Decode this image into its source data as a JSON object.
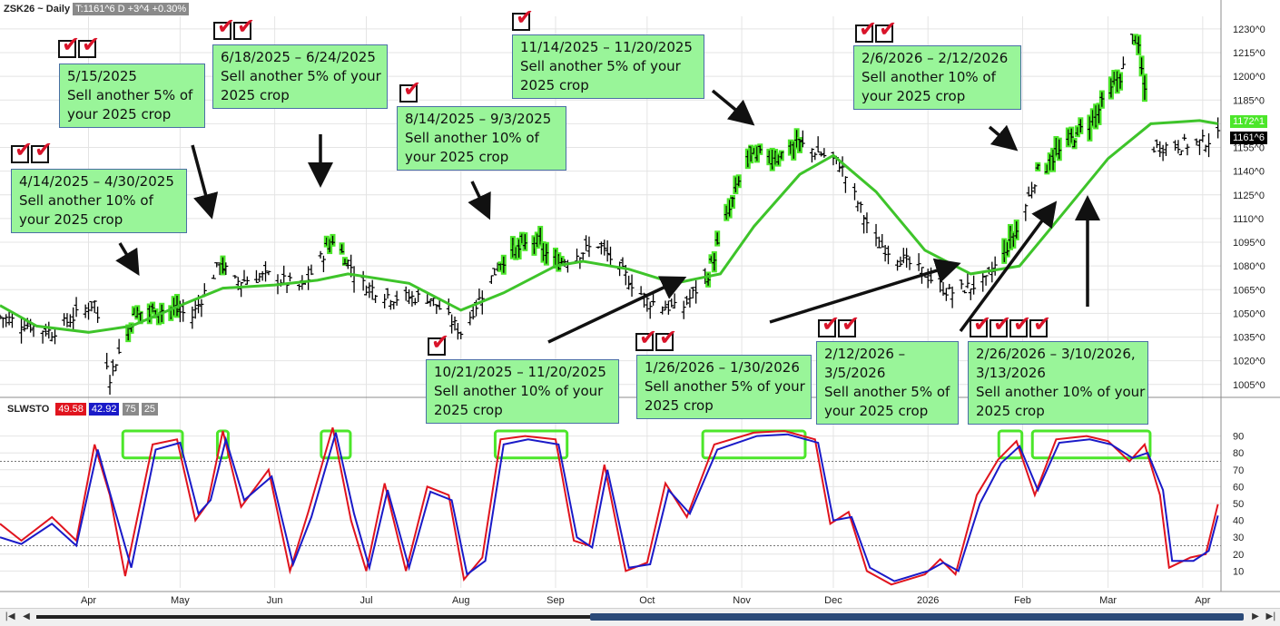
{
  "header": {
    "symbol": "ZSK26 ~ Daily",
    "quote": "T:1161^6 D  +3^4  +0.30%"
  },
  "indicator_header": {
    "name": "SLWSTO",
    "values": [
      {
        "text": "49.58",
        "color": "#e0141e"
      },
      {
        "text": "42.92",
        "color": "#1a1ac8"
      },
      {
        "text": "75",
        "color": "#8a8a8a"
      },
      {
        "text": "25",
        "color": "#8a8a8a"
      }
    ]
  },
  "price_labels": {
    "ma_value": "1172^1",
    "last_value": "1161^6"
  },
  "annotations": [
    {
      "lines": [
        "4/14/2025 – 4/30/2025",
        "Sell another 10% of",
        "your 2025 crop"
      ],
      "checks": 2
    },
    {
      "lines": [
        "5/15/2025",
        "Sell another 5% of",
        "your 2025 crop"
      ],
      "checks": 2
    },
    {
      "lines": [
        "6/18/2025 – 6/24/2025",
        "Sell another 5% of your",
        "2025 crop"
      ],
      "checks": 2
    },
    {
      "lines": [
        "8/14/2025 – 9/3/2025",
        "Sell another 10% of",
        "your 2025 crop"
      ],
      "checks": 1
    },
    {
      "lines": [
        "10/21/2025 – 11/20/2025",
        "Sell another 10% of your",
        "2025 crop"
      ],
      "checks": 1
    },
    {
      "lines": [
        "11/14/2025 – 11/20/2025",
        "Sell another 5% of your",
        "2025 crop"
      ],
      "checks": 1
    },
    {
      "lines": [
        "1/26/2026 – 1/30/2026",
        "Sell another 5% of your",
        "2025 crop"
      ],
      "checks": 2
    },
    {
      "lines": [
        "2/6/2026 – 2/12/2026",
        "Sell another 10% of",
        "your 2025 crop"
      ],
      "checks": 2
    },
    {
      "lines": [
        "2/12/2026 –",
        "3/5/2026",
        "Sell another 5% of",
        "your 2025 crop"
      ],
      "checks": 2
    },
    {
      "lines": [
        "2/26/2026 – 3/10/2026,",
        "3/13/2026",
        "Sell another 10% of your",
        "2025 crop"
      ],
      "checks": 4
    }
  ],
  "chart_data": [
    {
      "type": "ohlc",
      "title": "ZSK26 ~ Daily",
      "y_axis_side": "right",
      "y_ticks": [
        "1230^0",
        "1215^0",
        "1200^0",
        "1185^0",
        "1170^0",
        "1155^0",
        "1140^0",
        "1125^0",
        "1110^0",
        "1095^0",
        "1080^0",
        "1065^0",
        "1050^0",
        "1035^0",
        "1020^0",
        "1005^0"
      ],
      "ylim": [
        998,
        1238
      ],
      "x_labels": [
        "Apr",
        "May",
        "Jun",
        "Jul",
        "Aug",
        "Sep",
        "Oct",
        "Nov",
        "Dec",
        "2026",
        "Feb",
        "Mar",
        "Apr"
      ],
      "x_label_dates": [
        "2025-04-01",
        "2025-05-01",
        "2025-06-01",
        "2025-07-01",
        "2025-08-01",
        "2025-09-01",
        "2025-10-01",
        "2025-11-01",
        "2025-12-01",
        "2026-01-01",
        "2026-02-01",
        "2026-03-01",
        "2026-04-01"
      ],
      "close_points": [
        [
          "2025-03-03",
          1048
        ],
        [
          "2025-03-20",
          1038
        ],
        [
          "2025-04-03",
          1057
        ],
        [
          "2025-04-08",
          1010
        ],
        [
          "2025-04-16",
          1050
        ],
        [
          "2025-04-28",
          1053
        ],
        [
          "2025-05-05",
          1048
        ],
        [
          "2025-05-14",
          1082
        ],
        [
          "2025-05-19",
          1070
        ],
        [
          "2025-05-30",
          1074
        ],
        [
          "2025-06-10",
          1066
        ],
        [
          "2025-06-20",
          1097
        ],
        [
          "2025-06-30",
          1068
        ],
        [
          "2025-07-10",
          1060
        ],
        [
          "2025-07-22",
          1060
        ],
        [
          "2025-08-01",
          1038
        ],
        [
          "2025-08-14",
          1083
        ],
        [
          "2025-08-25",
          1097
        ],
        [
          "2025-09-01",
          1081
        ],
        [
          "2025-09-15",
          1094
        ],
        [
          "2025-10-01",
          1058
        ],
        [
          "2025-10-12",
          1052
        ],
        [
          "2025-10-21",
          1075
        ],
        [
          "2025-11-03",
          1150
        ],
        [
          "2025-11-13",
          1150
        ],
        [
          "2025-11-20",
          1157
        ],
        [
          "2025-11-26",
          1152
        ],
        [
          "2025-12-03",
          1145
        ],
        [
          "2025-12-15",
          1095
        ],
        [
          "2025-12-31",
          1075
        ],
        [
          "2026-01-08",
          1063
        ],
        [
          "2026-01-20",
          1070
        ],
        [
          "2026-01-30",
          1102
        ],
        [
          "2026-02-06",
          1140
        ],
        [
          "2026-02-12",
          1150
        ],
        [
          "2026-02-25",
          1176
        ],
        [
          "2026-03-05",
          1200
        ],
        [
          "2026-03-10",
          1228
        ],
        [
          "2026-03-16",
          1155
        ],
        [
          "2026-03-31",
          1158
        ],
        [
          "2026-04-06",
          1161.75
        ]
      ],
      "series": [
        {
          "name": "",
          "type": "moving_average",
          "color": "#3ec42a",
          "points": [
            [
              "2025-03-03",
              1055
            ],
            [
              "2025-03-15",
              1042
            ],
            [
              "2025-04-01",
              1038
            ],
            [
              "2025-04-15",
              1042
            ],
            [
              "2025-05-01",
              1055
            ],
            [
              "2025-05-15",
              1066
            ],
            [
              "2025-06-01",
              1068
            ],
            [
              "2025-06-15",
              1071
            ],
            [
              "2025-06-25",
              1075
            ],
            [
              "2025-07-15",
              1069
            ],
            [
              "2025-08-01",
              1052
            ],
            [
              "2025-08-15",
              1063
            ],
            [
              "2025-09-01",
              1080
            ],
            [
              "2025-09-10",
              1083
            ],
            [
              "2025-09-25",
              1078
            ],
            [
              "2025-10-10",
              1069
            ],
            [
              "2025-10-25",
              1075
            ],
            [
              "2025-11-05",
              1105
            ],
            [
              "2025-11-20",
              1138
            ],
            [
              "2025-12-01",
              1150
            ],
            [
              "2025-12-15",
              1127
            ],
            [
              "2025-12-31",
              1090
            ],
            [
              "2026-01-15",
              1075
            ],
            [
              "2026-01-31",
              1080
            ],
            [
              "2026-02-15",
              1115
            ],
            [
              "2026-03-01",
              1148
            ],
            [
              "2026-03-15",
              1170
            ],
            [
              "2026-03-31",
              1172
            ],
            [
              "2026-04-06",
              1170
            ]
          ]
        }
      ],
      "highlight_ranges": [
        [
          "2025-04-14",
          "2025-04-30"
        ],
        [
          "2025-05-15",
          "2025-05-15"
        ],
        [
          "2025-06-18",
          "2025-06-24"
        ],
        [
          "2025-08-14",
          "2025-09-03"
        ],
        [
          "2025-10-21",
          "2025-11-20"
        ],
        [
          "2026-01-26",
          "2026-01-30"
        ],
        [
          "2026-02-06",
          "2026-03-05"
        ],
        [
          "2026-03-10",
          "2026-03-13"
        ]
      ],
      "highlight_color": "#4ce62a",
      "last_price": 1161.75,
      "ma_last": 1172.125
    },
    {
      "type": "line",
      "title": "SLWSTO",
      "ylim": [
        0,
        100
      ],
      "y_ticks": [
        "90",
        "80",
        "70",
        "60",
        "50",
        "40",
        "30",
        "20",
        "10"
      ],
      "reference_lines": [
        75,
        25
      ],
      "series": [
        {
          "name": "",
          "color": "#e0141e",
          "points": [
            [
              "2025-03-03",
              38
            ],
            [
              "2025-03-10",
              28
            ],
            [
              "2025-03-20",
              42
            ],
            [
              "2025-03-28",
              28
            ],
            [
              "2025-04-03",
              85
            ],
            [
              "2025-04-08",
              55
            ],
            [
              "2025-04-13",
              7
            ],
            [
              "2025-04-22",
              85
            ],
            [
              "2025-04-30",
              88
            ],
            [
              "2025-05-06",
              40
            ],
            [
              "2025-05-10",
              50
            ],
            [
              "2025-05-15",
              93
            ],
            [
              "2025-05-21",
              48
            ],
            [
              "2025-05-30",
              70
            ],
            [
              "2025-06-06",
              10
            ],
            [
              "2025-06-12",
              45
            ],
            [
              "2025-06-20",
              95
            ],
            [
              "2025-06-26",
              40
            ],
            [
              "2025-07-01",
              10
            ],
            [
              "2025-07-07",
              62
            ],
            [
              "2025-07-14",
              10
            ],
            [
              "2025-07-21",
              60
            ],
            [
              "2025-07-28",
              55
            ],
            [
              "2025-08-02",
              5
            ],
            [
              "2025-08-08",
              18
            ],
            [
              "2025-08-14",
              88
            ],
            [
              "2025-08-22",
              90
            ],
            [
              "2025-09-01",
              88
            ],
            [
              "2025-09-07",
              28
            ],
            [
              "2025-09-12",
              25
            ],
            [
              "2025-09-17",
              73
            ],
            [
              "2025-09-24",
              10
            ],
            [
              "2025-10-01",
              15
            ],
            [
              "2025-10-07",
              62
            ],
            [
              "2025-10-14",
              42
            ],
            [
              "2025-10-23",
              85
            ],
            [
              "2025-11-05",
              92
            ],
            [
              "2025-11-15",
              93
            ],
            [
              "2025-11-25",
              88
            ],
            [
              "2025-11-30",
              38
            ],
            [
              "2025-12-06",
              45
            ],
            [
              "2025-12-12",
              10
            ],
            [
              "2025-12-20",
              2
            ],
            [
              "2025-12-31",
              8
            ],
            [
              "2026-01-05",
              17
            ],
            [
              "2026-01-10",
              8
            ],
            [
              "2026-01-17",
              55
            ],
            [
              "2026-01-24",
              76
            ],
            [
              "2026-01-30",
              87
            ],
            [
              "2026-02-05",
              55
            ],
            [
              "2026-02-12",
              88
            ],
            [
              "2026-02-22",
              90
            ],
            [
              "2026-03-01",
              87
            ],
            [
              "2026-03-08",
              75
            ],
            [
              "2026-03-13",
              85
            ],
            [
              "2026-03-18",
              55
            ],
            [
              "2026-03-21",
              12
            ],
            [
              "2026-03-28",
              18
            ],
            [
              "2026-04-02",
              20
            ],
            [
              "2026-04-06",
              49.58
            ]
          ]
        },
        {
          "name": "",
          "color": "#1a1ac8",
          "points": [
            [
              "2025-03-03",
              30
            ],
            [
              "2025-03-10",
              26
            ],
            [
              "2025-03-20",
              38
            ],
            [
              "2025-03-28",
              25
            ],
            [
              "2025-04-04",
              82
            ],
            [
              "2025-04-09",
              50
            ],
            [
              "2025-04-15",
              12
            ],
            [
              "2025-04-23",
              82
            ],
            [
              "2025-05-01",
              86
            ],
            [
              "2025-05-07",
              44
            ],
            [
              "2025-05-11",
              52
            ],
            [
              "2025-05-16",
              88
            ],
            [
              "2025-05-22",
              52
            ],
            [
              "2025-05-31",
              66
            ],
            [
              "2025-06-07",
              14
            ],
            [
              "2025-06-13",
              42
            ],
            [
              "2025-06-21",
              92
            ],
            [
              "2025-06-27",
              44
            ],
            [
              "2025-07-02",
              12
            ],
            [
              "2025-07-08",
              58
            ],
            [
              "2025-07-15",
              12
            ],
            [
              "2025-07-22",
              57
            ],
            [
              "2025-07-29",
              52
            ],
            [
              "2025-08-03",
              8
            ],
            [
              "2025-08-09",
              16
            ],
            [
              "2025-08-15",
              85
            ],
            [
              "2025-08-23",
              88
            ],
            [
              "2025-09-02",
              85
            ],
            [
              "2025-09-08",
              30
            ],
            [
              "2025-09-13",
              24
            ],
            [
              "2025-09-18",
              70
            ],
            [
              "2025-09-25",
              12
            ],
            [
              "2025-10-02",
              14
            ],
            [
              "2025-10-08",
              58
            ],
            [
              "2025-10-15",
              44
            ],
            [
              "2025-10-24",
              82
            ],
            [
              "2025-11-06",
              90
            ],
            [
              "2025-11-16",
              91
            ],
            [
              "2025-11-26",
              86
            ],
            [
              "2025-12-01",
              40
            ],
            [
              "2025-12-07",
              42
            ],
            [
              "2025-12-13",
              12
            ],
            [
              "2025-12-21",
              4
            ],
            [
              "2026-01-01",
              10
            ],
            [
              "2026-01-06",
              15
            ],
            [
              "2026-01-11",
              10
            ],
            [
              "2026-01-18",
              50
            ],
            [
              "2026-01-25",
              74
            ],
            [
              "2026-01-31",
              84
            ],
            [
              "2026-02-06",
              58
            ],
            [
              "2026-02-13",
              86
            ],
            [
              "2026-02-23",
              88
            ],
            [
              "2026-03-02",
              85
            ],
            [
              "2026-03-09",
              77
            ],
            [
              "2026-03-14",
              80
            ],
            [
              "2026-03-19",
              58
            ],
            [
              "2026-03-22",
              16
            ],
            [
              "2026-03-29",
              16
            ],
            [
              "2026-04-03",
              22
            ],
            [
              "2026-04-06",
              42.92
            ]
          ]
        }
      ],
      "highlight_ranges": [
        [
          "2025-04-14",
          "2025-04-30"
        ],
        [
          "2025-05-15",
          "2025-05-15"
        ],
        [
          "2025-06-18",
          "2025-06-24"
        ],
        [
          "2025-08-14",
          "2025-09-03"
        ],
        [
          "2025-10-21",
          "2025-11-20"
        ],
        [
          "2026-01-26",
          "2026-01-30"
        ],
        [
          "2026-02-06",
          "2026-03-13"
        ]
      ],
      "last_values": [
        49.58,
        42.92
      ]
    }
  ]
}
